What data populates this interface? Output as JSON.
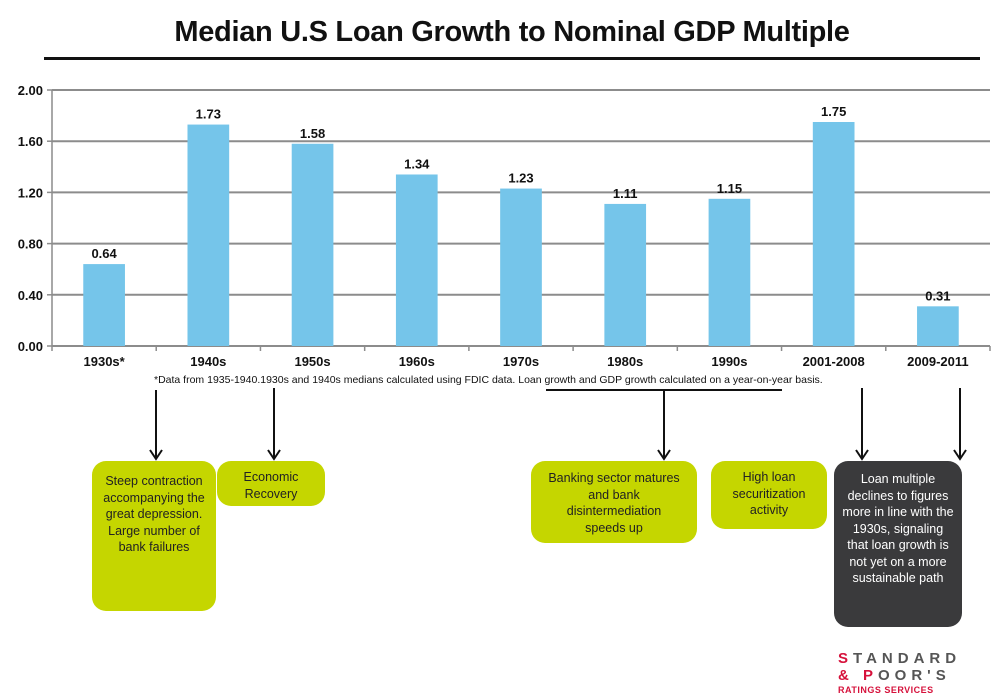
{
  "chart_data": {
    "type": "bar",
    "title": "Median U.S Loan Growth to Nominal GDP Multiple",
    "xlabel": "",
    "ylabel": "",
    "categories": [
      "1930s*",
      "1940s",
      "1950s",
      "1960s",
      "1970s",
      "1980s",
      "1990s",
      "2001-2008",
      "2009-2011"
    ],
    "values": [
      0.64,
      1.73,
      1.58,
      1.34,
      1.23,
      1.11,
      1.15,
      1.75,
      0.31
    ],
    "data_labels": [
      "0.64",
      "1.73",
      "1.58",
      "1.34",
      "1.23",
      "1.11",
      "1.15",
      "1.75",
      "0.31"
    ],
    "ylim": [
      0,
      2.0
    ],
    "yticks": [
      "0.00",
      "0.40",
      "0.80",
      "1.20",
      "1.60",
      "2.00"
    ],
    "grid": true,
    "bar_color": "#75c5ea",
    "footnote": "*Data from 1935-1940.1930s and 1940s medians calculated using FDIC data. Loan growth and GDP growth calculated on a year-on-year basis."
  },
  "callouts": [
    {
      "text": "Steep contraction accompanying the great depression. Large number of bank failures",
      "style": "green",
      "points_to": [
        "1930s*"
      ]
    },
    {
      "text": "Economic Recovery",
      "style": "green",
      "points_to": [
        "1940s"
      ]
    },
    {
      "text": "Banking sector matures and bank disintermediation speeds up",
      "style": "green",
      "points_to": [
        "1970s",
        "1980s",
        "1990s"
      ]
    },
    {
      "text": "High loan securitization activity",
      "style": "green",
      "points_to": []
    },
    {
      "text": "Loan multiple declines to figures more in line with the 1930s, signaling that loan growth is not yet on a more sustainable path",
      "style": "dark",
      "points_to": [
        "2001-2008",
        "2009-2011"
      ]
    }
  ],
  "colors": {
    "callout_green": "#c5d600",
    "callout_dark": "#3a3a3c",
    "brand_red": "#d6113b"
  },
  "logo": {
    "line1_first": "S",
    "line1_rest": "TANDARD",
    "line2_first": "& P",
    "line2_rest": "OOR'S",
    "line3": "RATINGS SERVICES"
  }
}
